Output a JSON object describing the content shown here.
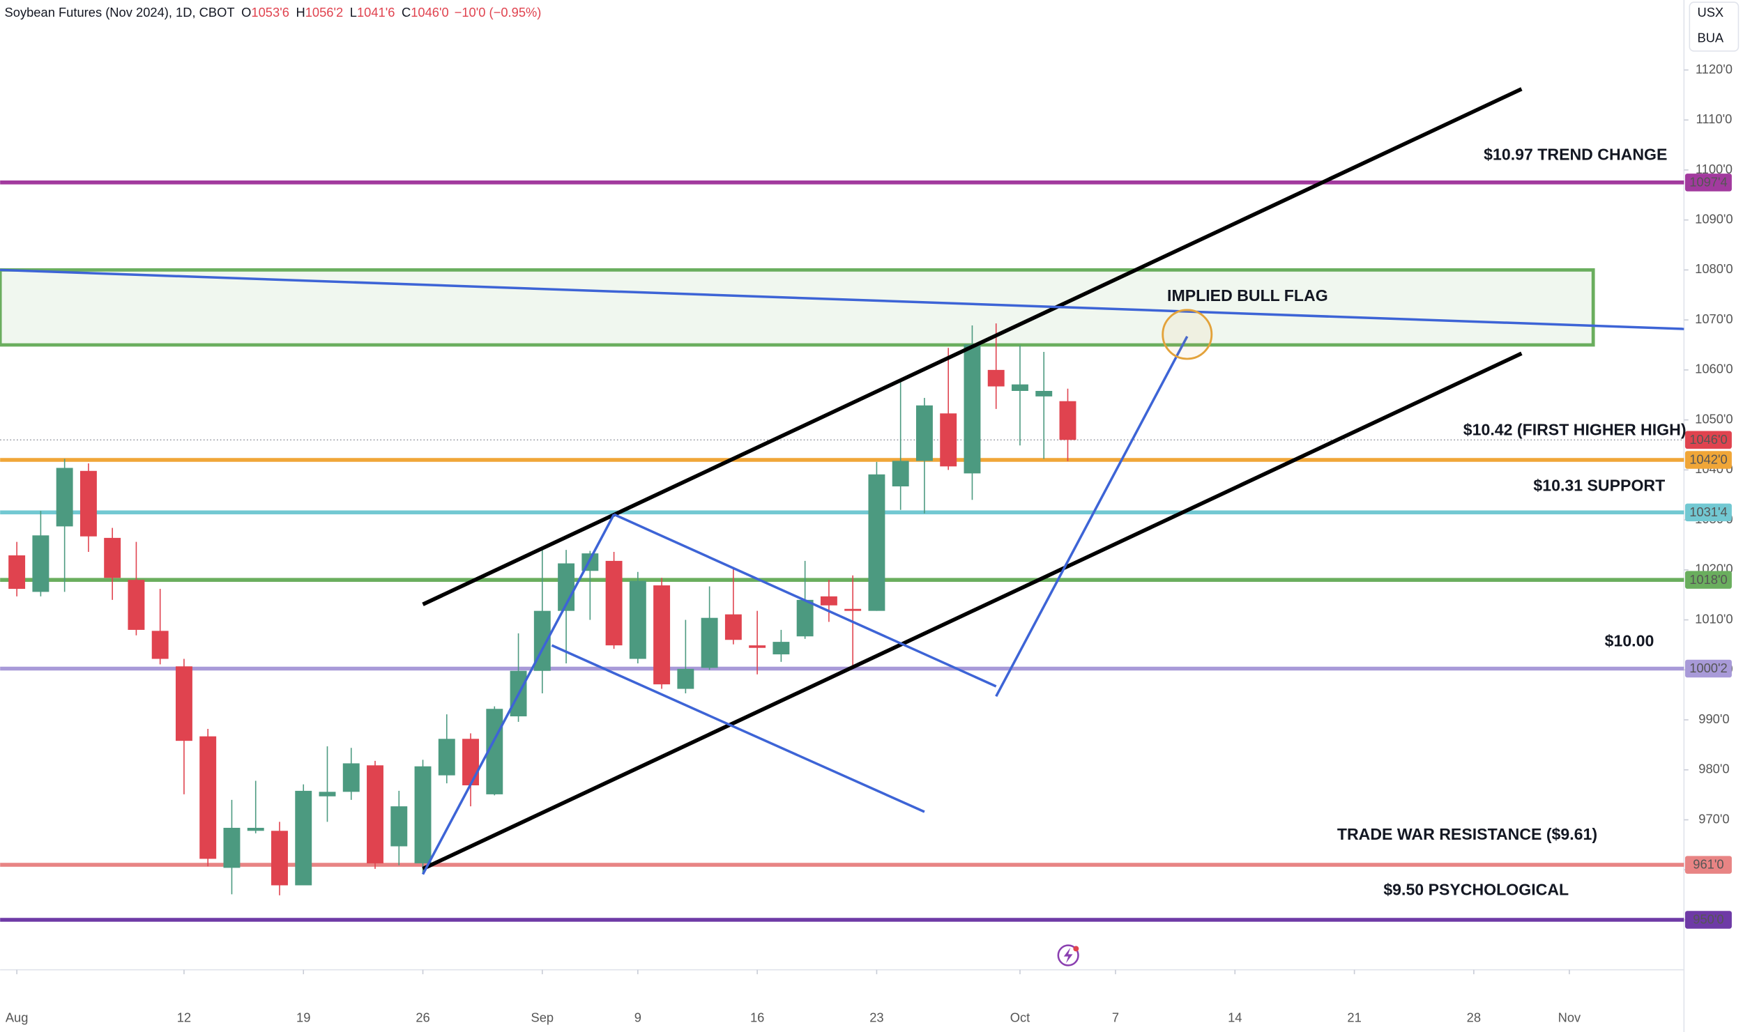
{
  "chart_data": {
    "type": "candlestick",
    "header": {
      "symbol": "Soybean Futures (Nov 2024), 1D, CBOT",
      "ohlc": [
        {
          "key": "O",
          "value": "1053'6"
        },
        {
          "key": "H",
          "value": "1056'2"
        },
        {
          "key": "L",
          "value": "1041'6"
        },
        {
          "key": "C",
          "value": "1046'0"
        }
      ],
      "change": "−10'0 (−0.95%)"
    },
    "currency_buttons": [
      "USX",
      "BUA"
    ],
    "xlim": [
      -0.7,
      69.8
    ],
    "ylim": [
      940,
      1134
    ],
    "up_color": "#4c9a80",
    "down_color": "#e0434f",
    "candles": [
      {
        "open": 1022.9,
        "high": 1025.6,
        "low": 1014.7,
        "close": 1016.2
      },
      {
        "open": 1015.6,
        "high": 1031.8,
        "low": 1014.7,
        "close": 1026.9
      },
      {
        "open": 1028.7,
        "high": 1042.2,
        "low": 1015.6,
        "close": 1040.4
      },
      {
        "open": 1039.8,
        "high": 1041.3,
        "low": 1023.6,
        "close": 1026.7
      },
      {
        "open": 1026.4,
        "high": 1028.4,
        "low": 1014.0,
        "close": 1018.4
      },
      {
        "open": 1018.0,
        "high": 1025.6,
        "low": 1006.9,
        "close": 1008.0
      },
      {
        "open": 1007.8,
        "high": 1016.2,
        "low": 1001.1,
        "close": 1002.2
      },
      {
        "open": 1000.7,
        "high": 1002.2,
        "low": 975.1,
        "close": 985.8
      },
      {
        "open": 986.7,
        "high": 988.2,
        "low": 960.7,
        "close": 962.2
      },
      {
        "open": 960.4,
        "high": 974.0,
        "low": 955.1,
        "close": 968.4
      },
      {
        "open": 967.8,
        "high": 977.8,
        "low": 967.3,
        "close": 968.4
      },
      {
        "open": 967.8,
        "high": 969.6,
        "low": 954.9,
        "close": 956.9
      },
      {
        "open": 956.9,
        "high": 977.1,
        "low": 956.9,
        "close": 975.8
      },
      {
        "open": 974.7,
        "high": 984.7,
        "low": 969.6,
        "close": 975.6
      },
      {
        "open": 975.6,
        "high": 984.4,
        "low": 974.0,
        "close": 981.3
      },
      {
        "open": 980.9,
        "high": 981.8,
        "low": 960.2,
        "close": 961.3
      },
      {
        "open": 964.7,
        "high": 975.8,
        "low": 960.9,
        "close": 972.7
      },
      {
        "open": 961.3,
        "high": 982.0,
        "low": 959.3,
        "close": 980.7
      },
      {
        "open": 978.9,
        "high": 991.1,
        "low": 977.3,
        "close": 986.2
      },
      {
        "open": 986.2,
        "high": 987.3,
        "low": 972.7,
        "close": 976.9
      },
      {
        "open": 975.1,
        "high": 992.7,
        "low": 974.9,
        "close": 992.2
      },
      {
        "open": 990.7,
        "high": 1007.3,
        "low": 989.6,
        "close": 999.8
      },
      {
        "open": 999.8,
        "high": 1024.2,
        "low": 995.3,
        "close": 1011.8
      },
      {
        "open": 1011.8,
        "high": 1024.0,
        "low": 1001.3,
        "close": 1021.3
      },
      {
        "open": 1019.8,
        "high": 1023.8,
        "low": 1010.0,
        "close": 1023.3
      },
      {
        "open": 1021.8,
        "high": 1023.6,
        "low": 1004.2,
        "close": 1004.9
      },
      {
        "open": 1002.2,
        "high": 1019.6,
        "low": 1001.3,
        "close": 1017.8
      },
      {
        "open": 1016.9,
        "high": 1018.4,
        "low": 996.2,
        "close": 997.1
      },
      {
        "open": 996.2,
        "high": 1010.0,
        "low": 995.3,
        "close": 1000.2
      },
      {
        "open": 1000.4,
        "high": 1016.7,
        "low": 1000.0,
        "close": 1010.4
      },
      {
        "open": 1011.1,
        "high": 1020.4,
        "low": 1005.1,
        "close": 1006.0
      },
      {
        "open": 1004.9,
        "high": 1011.8,
        "low": 999.1,
        "close": 1004.4
      },
      {
        "open": 1003.1,
        "high": 1008.0,
        "low": 1001.6,
        "close": 1005.6
      },
      {
        "open": 1006.7,
        "high": 1021.8,
        "low": 1006.2,
        "close": 1014.0
      },
      {
        "open": 1014.7,
        "high": 1018.0,
        "low": 1009.6,
        "close": 1012.9
      },
      {
        "open": 1012.2,
        "high": 1018.9,
        "low": 1000.7,
        "close": 1011.8
      },
      {
        "open": 1011.8,
        "high": 1041.6,
        "low": 1011.8,
        "close": 1039.1
      },
      {
        "open": 1036.7,
        "high": 1058.0,
        "low": 1032.0,
        "close": 1041.8
      },
      {
        "open": 1041.8,
        "high": 1054.4,
        "low": 1031.3,
        "close": 1052.9
      },
      {
        "open": 1051.3,
        "high": 1064.4,
        "low": 1040.0,
        "close": 1040.7
      },
      {
        "open": 1039.3,
        "high": 1068.9,
        "low": 1034.0,
        "close": 1065.1
      },
      {
        "open": 1060.0,
        "high": 1069.3,
        "low": 1052.2,
        "close": 1056.7
      },
      {
        "open": 1055.8,
        "high": 1064.9,
        "low": 1044.9,
        "close": 1057.1
      },
      {
        "open": 1054.7,
        "high": 1063.6,
        "low": 1042.2,
        "close": 1055.8
      },
      {
        "open": 1053.75,
        "high": 1056.25,
        "low": 1041.75,
        "close": 1046.0
      }
    ],
    "xticks": [
      {
        "value": 0,
        "label": "Aug"
      },
      {
        "value": 7,
        "label": "12"
      },
      {
        "value": 12,
        "label": "19"
      },
      {
        "value": 17,
        "label": "26"
      },
      {
        "value": 22,
        "label": "Sep"
      },
      {
        "value": 26,
        "label": "9"
      },
      {
        "value": 31,
        "label": "16"
      },
      {
        "value": 36,
        "label": "23"
      },
      {
        "value": 42,
        "label": "Oct"
      },
      {
        "value": 46,
        "label": "7"
      },
      {
        "value": 51,
        "label": "14"
      },
      {
        "value": 56,
        "label": "21"
      },
      {
        "value": 61,
        "label": "28"
      },
      {
        "value": 65,
        "label": "Nov"
      }
    ],
    "yticks": [
      {
        "value": 950,
        "label": "950'0"
      },
      {
        "value": 960,
        "label": "960'0"
      },
      {
        "value": 970,
        "label": "970'0"
      },
      {
        "value": 980,
        "label": "980'0"
      },
      {
        "value": 990,
        "label": "990'0"
      },
      {
        "value": 1000,
        "label": "1000'0"
      },
      {
        "value": 1010,
        "label": "1010'0"
      },
      {
        "value": 1020,
        "label": "1020'0"
      },
      {
        "value": 1030,
        "label": "1030'0"
      },
      {
        "value": 1040,
        "label": "1040'0"
      },
      {
        "value": 1050,
        "label": "1050'0"
      },
      {
        "value": 1060,
        "label": "1060'0"
      },
      {
        "value": 1070,
        "label": "1070'0"
      },
      {
        "value": 1080,
        "label": "1080'0"
      },
      {
        "value": 1090,
        "label": "1090'0"
      },
      {
        "value": 1100,
        "label": "1100'0"
      },
      {
        "value": 1110,
        "label": "1110'0"
      },
      {
        "value": 1120,
        "label": "1120'0"
      }
    ],
    "zone": {
      "x": [
        -0.7,
        66.0
      ],
      "y": [
        1065,
        1080
      ],
      "color": "#6aae5e"
    },
    "levels": [
      {
        "value": 1097.5,
        "label": "1097'4",
        "color": "#a23a9e"
      },
      {
        "value": 1042,
        "label": "1042'0",
        "color": "#f0a638"
      },
      {
        "value": 1031.5,
        "label": "1031'4",
        "color": "#72c8d2"
      },
      {
        "value": 1018,
        "label": "1018'0",
        "color": "#6aae5e"
      },
      {
        "value": 1000.25,
        "label": "1000'2",
        "color": "#a89ad8"
      },
      {
        "value": 961,
        "label": "961'0",
        "color": "#e88484"
      },
      {
        "value": 950,
        "label": "950'0",
        "color": "#6e3aa6"
      }
    ],
    "last": {
      "value": 1046,
      "label": "1046'0",
      "color": "#e0434f"
    },
    "trendlines": [
      {
        "x": [
          17.0,
          63.0
        ],
        "y": [
          1013.1,
          1116.2
        ],
        "color": "#000000"
      },
      {
        "x": [
          17.0,
          63.0
        ],
        "y": [
          960.2,
          1063.3
        ],
        "color": "#000000"
      },
      {
        "x": [
          -0.7,
          69.8
        ],
        "y": [
          1080,
          1068.2
        ],
        "color": "#3d64d6"
      },
      {
        "x": [
          25.0,
          41.0
        ],
        "y": [
          1031.1,
          996.7
        ],
        "color": "#3d64d6"
      },
      {
        "x": [
          22.4,
          38.0
        ],
        "y": [
          1004.9,
          971.6
        ],
        "color": "#3d64d6"
      },
      {
        "x": [
          17.0,
          25.0
        ],
        "y": [
          959.1,
          1031.1
        ],
        "color": "#3d64d6"
      },
      {
        "x": [
          41.0,
          49.0
        ],
        "y": [
          994.7,
          1066.7
        ],
        "color": "#3d64d6"
      }
    ],
    "circle": {
      "x": 49.0,
      "y": 1067.1,
      "color": "#e3a23a"
    },
    "annotations": [
      "$10.97 TREND CHANGE",
      "IMPLIED BULL FLAG",
      "$10.42 (FIRST HIGHER HIGH)",
      "$10.31 SUPPORT",
      "$10.00",
      "TRADE WAR RESISTANCE ($9.61)",
      "$9.50 PSYCHOLOGICAL"
    ]
  }
}
